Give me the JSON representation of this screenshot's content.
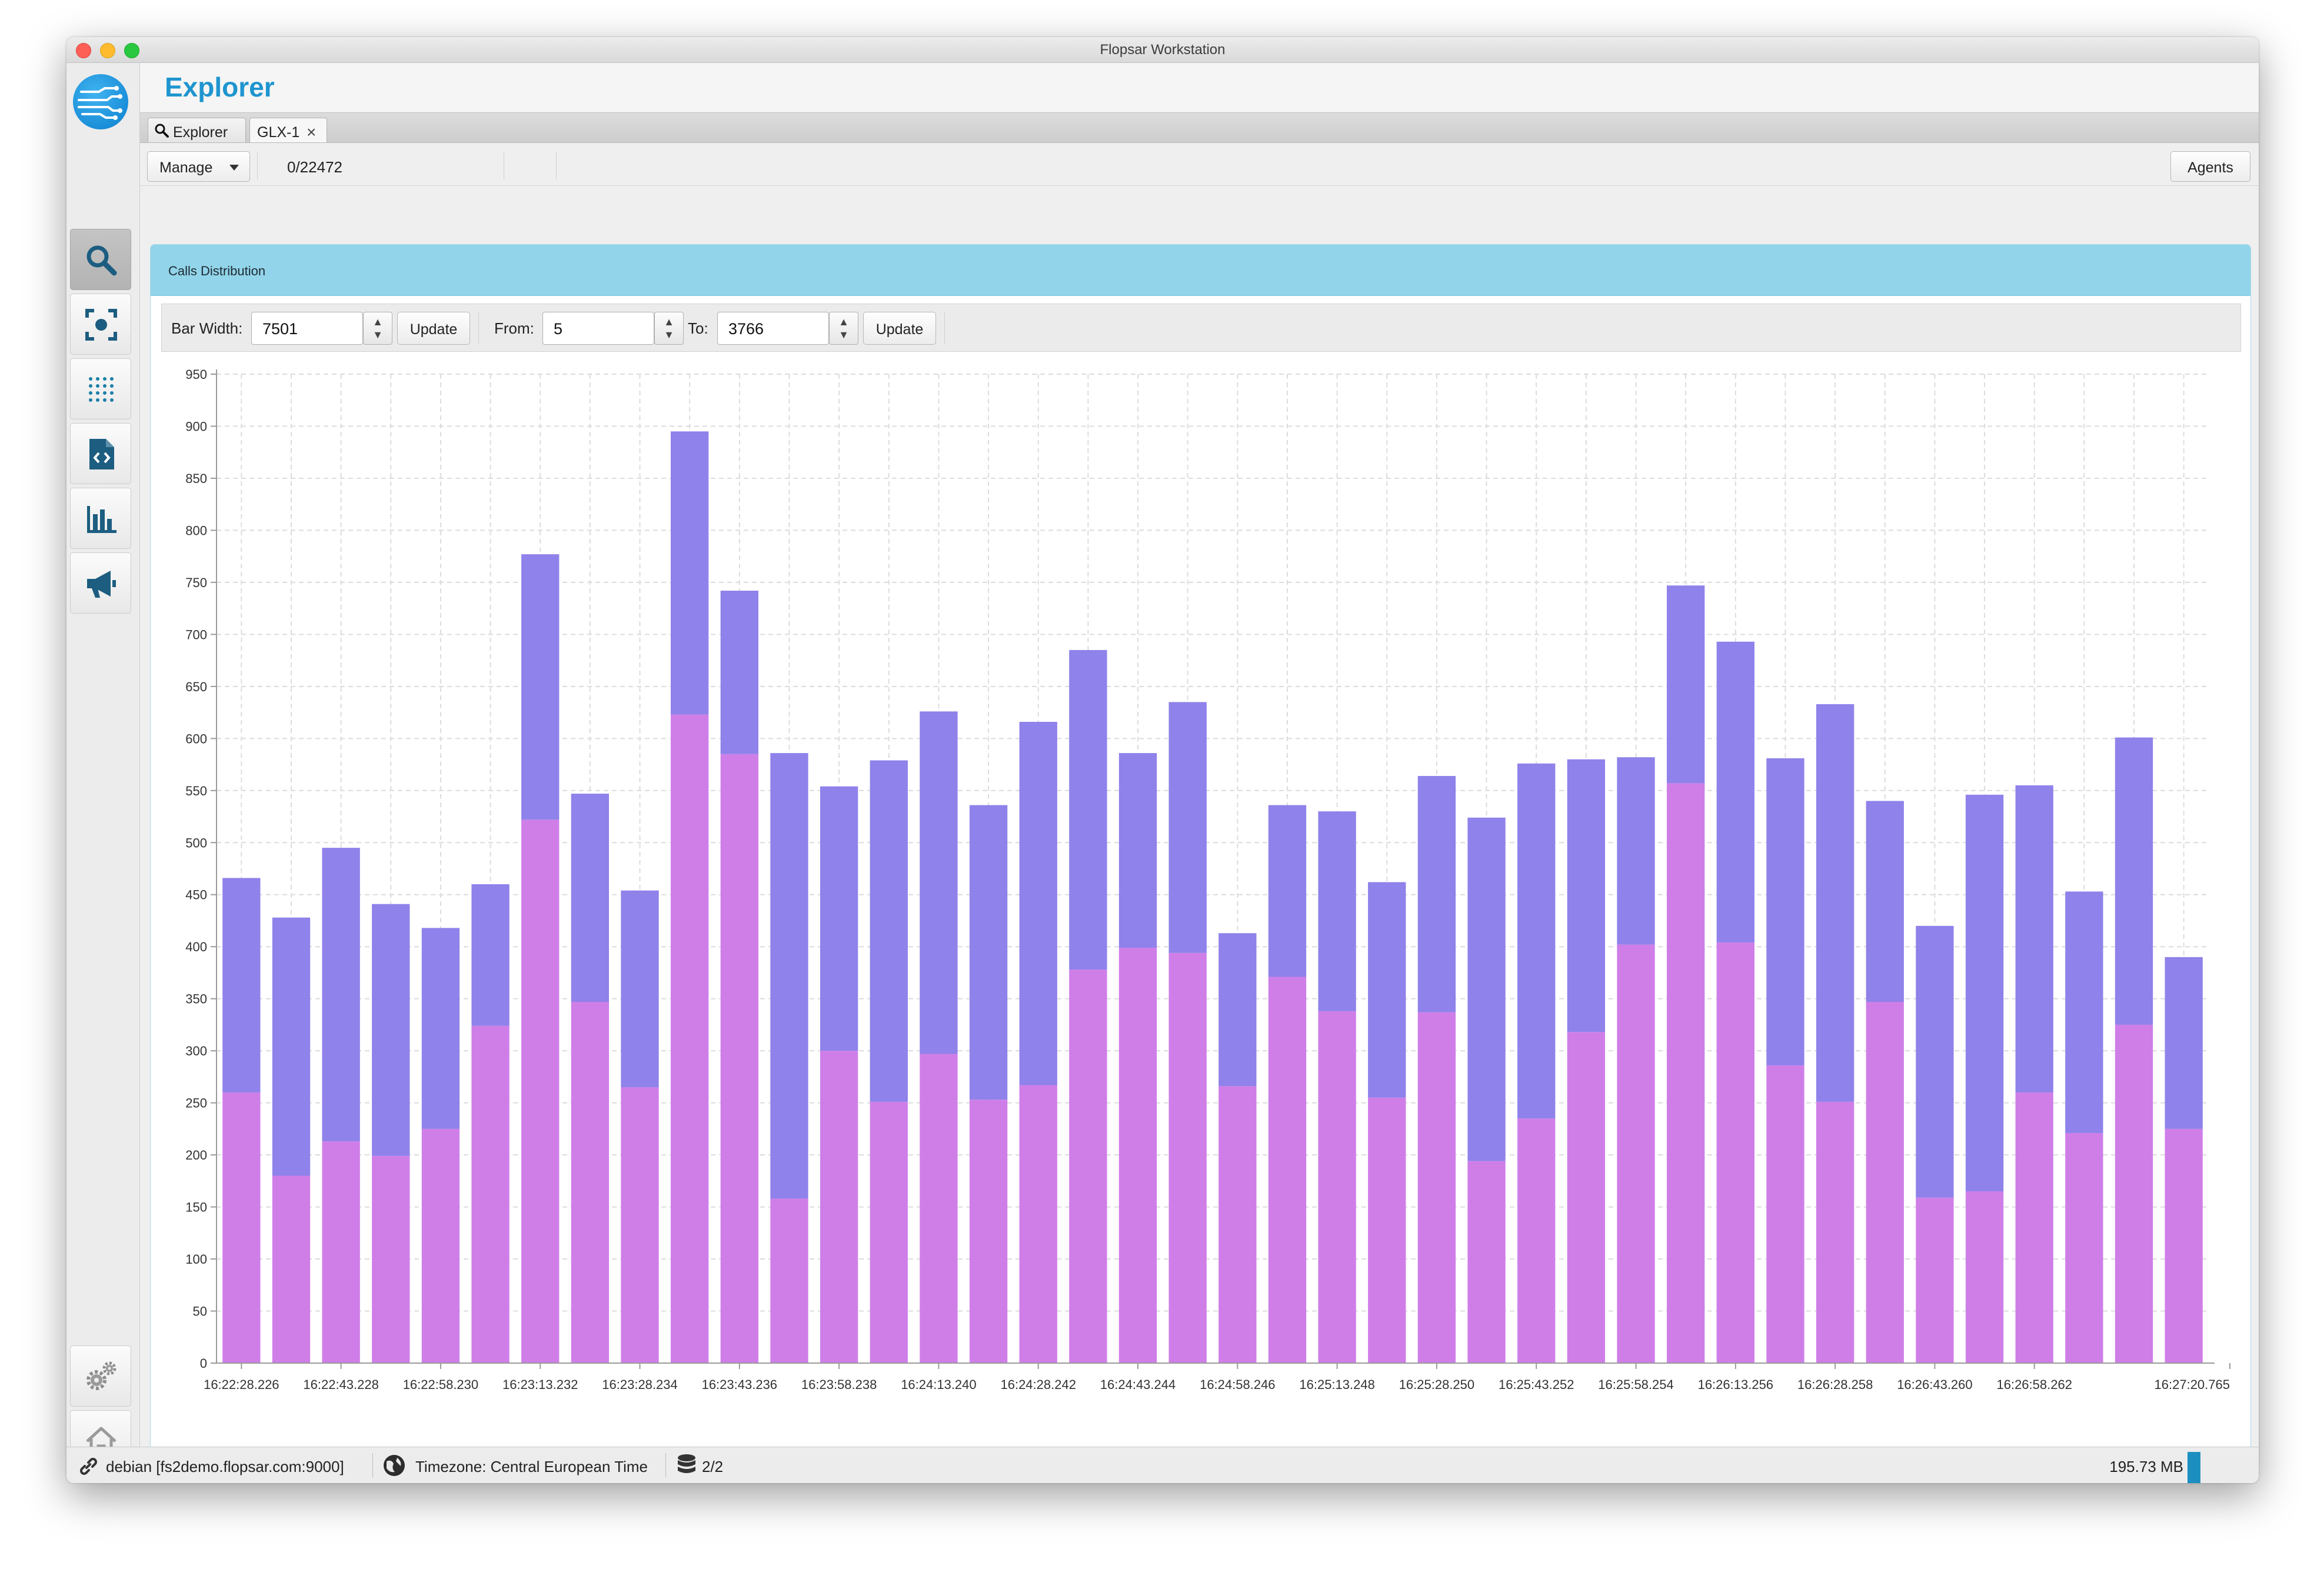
{
  "window": {
    "title": "Flopsar Workstation"
  },
  "app": {
    "title": "Explorer"
  },
  "tabs": [
    {
      "label": "Explorer",
      "icon": "search-icon"
    },
    {
      "label": "GLX-1",
      "close": "×"
    }
  ],
  "toolbar": {
    "manage_label": "Manage",
    "count": "0/22472",
    "agents_label": "Agents"
  },
  "panel": {
    "title": "Calls Distribution"
  },
  "controls": {
    "bar_width_label": "Bar Width:",
    "bar_width_value": "7501",
    "update_label": "Update",
    "from_label": "From:",
    "from_value": "5",
    "to_label": "To:",
    "to_value": "3766",
    "update2_label": "Update"
  },
  "colors": {
    "accent": "#1e95cf",
    "bar_top": "#8f82ea",
    "bar_bottom": "#cf7ee8",
    "panel_header": "#92d4e9"
  },
  "status": {
    "connection": "debian [fs2demo.flopsar.com:9000]",
    "timezone": "Timezone: Central European Time",
    "db": "2/2",
    "memory": "195.73 MB"
  },
  "nav_icons": [
    "search-icon",
    "focus-icon",
    "dots-grid-icon",
    "code-file-icon",
    "bar-chart-icon",
    "megaphone-icon",
    "settings-gears-icon",
    "home-icon"
  ],
  "chart_data": {
    "type": "bar",
    "stacked": true,
    "ylim": [
      0,
      950
    ],
    "yticks": [
      0,
      50,
      100,
      150,
      200,
      250,
      300,
      350,
      400,
      450,
      500,
      550,
      600,
      650,
      700,
      750,
      800,
      850,
      900,
      950
    ],
    "xtick_labels": [
      "16:22:28.226",
      "16:22:43.228",
      "16:22:58.230",
      "16:23:13.232",
      "16:23:28.234",
      "16:23:43.236",
      "16:23:58.238",
      "16:24:13.240",
      "16:24:28.242",
      "16:24:43.244",
      "16:24:58.246",
      "16:25:13.248",
      "16:25:28.250",
      "16:25:43.252",
      "16:25:58.254",
      "16:26:13.256",
      "16:26:28.258",
      "16:26:43.260",
      "16:26:58.262",
      "16:27:20.765"
    ],
    "grid": true,
    "series": [
      {
        "values": [
          260,
          180,
          213,
          199,
          225,
          324,
          522,
          347,
          265,
          623,
          585,
          158,
          300,
          251,
          297,
          253,
          267,
          378,
          399,
          394,
          266,
          371,
          338,
          255,
          337,
          194,
          235,
          318,
          402,
          557,
          404,
          286,
          251,
          347,
          159,
          165,
          260,
          221,
          325,
          225
        ]
      },
      {
        "values": [
          206,
          248,
          282,
          242,
          193,
          136,
          255,
          200,
          189,
          272,
          157,
          428,
          254,
          328,
          329,
          283,
          349,
          307,
          187,
          241,
          147,
          165,
          192,
          207,
          227,
          330,
          341,
          262,
          180,
          190,
          289,
          295,
          382,
          193,
          261,
          381,
          295,
          232,
          276,
          165
        ]
      }
    ]
  }
}
